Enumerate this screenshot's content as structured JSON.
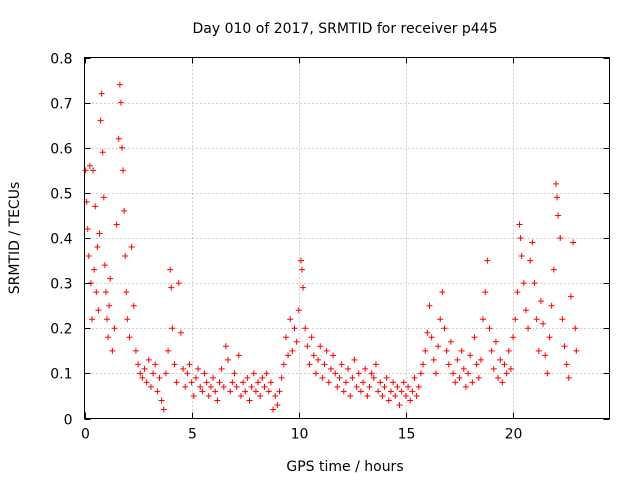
{
  "chart_data": {
    "type": "scatter",
    "title": "Day 010 of 2017, SRMTID for receiver p445",
    "xlabel": "GPS time / hours",
    "ylabel": "SRMTID / TECUs",
    "xlim": [
      0,
      24.5
    ],
    "ylim": [
      0,
      0.8
    ],
    "x_ticks": [
      0,
      5,
      10,
      15,
      20
    ],
    "x_tick_labels": [
      "0",
      "5",
      "10",
      "15",
      "20"
    ],
    "y_ticks": [
      0,
      0.1,
      0.2,
      0.3,
      0.4,
      0.5,
      0.6,
      0.7,
      0.8
    ],
    "y_tick_labels": [
      "0",
      "0.1",
      "0.2",
      "0.3",
      "0.4",
      "0.5",
      "0.6",
      "0.7",
      "0.8"
    ],
    "grid": true,
    "marker": "+",
    "color": "#ff0000",
    "series": [
      {
        "name": "p445",
        "points": [
          [
            0.05,
            0.55
          ],
          [
            0.1,
            0.48
          ],
          [
            0.15,
            0.42
          ],
          [
            0.2,
            0.36
          ],
          [
            0.25,
            0.56
          ],
          [
            0.3,
            0.3
          ],
          [
            0.35,
            0.22
          ],
          [
            0.4,
            0.55
          ],
          [
            0.45,
            0.33
          ],
          [
            0.5,
            0.47
          ],
          [
            0.55,
            0.28
          ],
          [
            0.6,
            0.38
          ],
          [
            0.65,
            0.24
          ],
          [
            0.7,
            0.41
          ],
          [
            0.75,
            0.66
          ],
          [
            0.8,
            0.72
          ],
          [
            0.85,
            0.59
          ],
          [
            0.9,
            0.49
          ],
          [
            0.95,
            0.34
          ],
          [
            1.0,
            0.28
          ],
          [
            1.05,
            0.22
          ],
          [
            1.1,
            0.18
          ],
          [
            1.15,
            0.25
          ],
          [
            1.2,
            0.31
          ],
          [
            1.3,
            0.15
          ],
          [
            1.4,
            0.2
          ],
          [
            1.5,
            0.43
          ],
          [
            1.6,
            0.62
          ],
          [
            1.65,
            0.74
          ],
          [
            1.7,
            0.7
          ],
          [
            1.75,
            0.6
          ],
          [
            1.8,
            0.55
          ],
          [
            1.85,
            0.46
          ],
          [
            1.9,
            0.36
          ],
          [
            1.95,
            0.28
          ],
          [
            2.0,
            0.22
          ],
          [
            2.1,
            0.18
          ],
          [
            2.2,
            0.38
          ],
          [
            2.3,
            0.25
          ],
          [
            2.4,
            0.15
          ],
          [
            2.5,
            0.12
          ],
          [
            2.6,
            0.1
          ],
          [
            2.7,
            0.09
          ],
          [
            2.8,
            0.11
          ],
          [
            2.9,
            0.08
          ],
          [
            3.0,
            0.13
          ],
          [
            3.1,
            0.07
          ],
          [
            3.2,
            0.1
          ],
          [
            3.3,
            0.12
          ],
          [
            3.4,
            0.06
          ],
          [
            3.5,
            0.09
          ],
          [
            3.6,
            0.04
          ],
          [
            3.7,
            0.02
          ],
          [
            3.8,
            0.1
          ],
          [
            3.9,
            0.15
          ],
          [
            4.0,
            0.33
          ],
          [
            4.05,
            0.29
          ],
          [
            4.1,
            0.2
          ],
          [
            4.2,
            0.12
          ],
          [
            4.3,
            0.08
          ],
          [
            4.4,
            0.3
          ],
          [
            4.5,
            0.19
          ],
          [
            4.6,
            0.11
          ],
          [
            4.7,
            0.07
          ],
          [
            4.8,
            0.1
          ],
          [
            4.9,
            0.12
          ],
          [
            5.0,
            0.08
          ],
          [
            5.1,
            0.05
          ],
          [
            5.2,
            0.09
          ],
          [
            5.3,
            0.11
          ],
          [
            5.4,
            0.07
          ],
          [
            5.5,
            0.06
          ],
          [
            5.6,
            0.1
          ],
          [
            5.7,
            0.08
          ],
          [
            5.8,
            0.05
          ],
          [
            5.9,
            0.07
          ],
          [
            6.0,
            0.09
          ],
          [
            6.1,
            0.06
          ],
          [
            6.2,
            0.04
          ],
          [
            6.3,
            0.08
          ],
          [
            6.4,
            0.11
          ],
          [
            6.5,
            0.07
          ],
          [
            6.6,
            0.16
          ],
          [
            6.7,
            0.13
          ],
          [
            6.8,
            0.06
          ],
          [
            6.9,
            0.08
          ],
          [
            7.0,
            0.1
          ],
          [
            7.1,
            0.07
          ],
          [
            7.2,
            0.14
          ],
          [
            7.3,
            0.05
          ],
          [
            7.4,
            0.08
          ],
          [
            7.5,
            0.06
          ],
          [
            7.6,
            0.09
          ],
          [
            7.7,
            0.04
          ],
          [
            7.8,
            0.07
          ],
          [
            7.9,
            0.1
          ],
          [
            8.0,
            0.06
          ],
          [
            8.1,
            0.08
          ],
          [
            8.2,
            0.05
          ],
          [
            8.3,
            0.09
          ],
          [
            8.4,
            0.07
          ],
          [
            8.5,
            0.1
          ],
          [
            8.6,
            0.06
          ],
          [
            8.7,
            0.08
          ],
          [
            8.8,
            0.02
          ],
          [
            8.9,
            0.05
          ],
          [
            9.0,
            0.03
          ],
          [
            9.1,
            0.06
          ],
          [
            9.2,
            0.09
          ],
          [
            9.3,
            0.12
          ],
          [
            9.4,
            0.18
          ],
          [
            9.5,
            0.14
          ],
          [
            9.6,
            0.22
          ],
          [
            9.7,
            0.15
          ],
          [
            9.8,
            0.2
          ],
          [
            9.9,
            0.17
          ],
          [
            10.0,
            0.24
          ],
          [
            10.1,
            0.35
          ],
          [
            10.15,
            0.33
          ],
          [
            10.2,
            0.29
          ],
          [
            10.3,
            0.2
          ],
          [
            10.4,
            0.16
          ],
          [
            10.5,
            0.12
          ],
          [
            10.6,
            0.18
          ],
          [
            10.7,
            0.14
          ],
          [
            10.8,
            0.1
          ],
          [
            10.9,
            0.13
          ],
          [
            11.0,
            0.16
          ],
          [
            11.1,
            0.09
          ],
          [
            11.2,
            0.12
          ],
          [
            11.3,
            0.15
          ],
          [
            11.4,
            0.08
          ],
          [
            11.5,
            0.11
          ],
          [
            11.6,
            0.14
          ],
          [
            11.7,
            0.1
          ],
          [
            11.8,
            0.07
          ],
          [
            11.9,
            0.09
          ],
          [
            12.0,
            0.12
          ],
          [
            12.1,
            0.06
          ],
          [
            12.2,
            0.08
          ],
          [
            12.3,
            0.11
          ],
          [
            12.4,
            0.05
          ],
          [
            12.5,
            0.09
          ],
          [
            12.6,
            0.13
          ],
          [
            12.7,
            0.07
          ],
          [
            12.8,
            0.1
          ],
          [
            12.9,
            0.06
          ],
          [
            13.0,
            0.08
          ],
          [
            13.1,
            0.11
          ],
          [
            13.2,
            0.05
          ],
          [
            13.3,
            0.07
          ],
          [
            13.4,
            0.1
          ],
          [
            13.5,
            0.09
          ],
          [
            13.6,
            0.12
          ],
          [
            13.7,
            0.06
          ],
          [
            13.8,
            0.08
          ],
          [
            13.9,
            0.05
          ],
          [
            14.0,
            0.07
          ],
          [
            14.1,
            0.09
          ],
          [
            14.2,
            0.04
          ],
          [
            14.3,
            0.06
          ],
          [
            14.4,
            0.08
          ],
          [
            14.5,
            0.05
          ],
          [
            14.6,
            0.07
          ],
          [
            14.7,
            0.03
          ],
          [
            14.8,
            0.06
          ],
          [
            14.9,
            0.08
          ],
          [
            15.0,
            0.05
          ],
          [
            15.1,
            0.07
          ],
          [
            15.2,
            0.04
          ],
          [
            15.3,
            0.06
          ],
          [
            15.4,
            0.09
          ],
          [
            15.5,
            0.05
          ],
          [
            15.6,
            0.07
          ],
          [
            15.7,
            0.1
          ],
          [
            15.8,
            0.12
          ],
          [
            15.9,
            0.15
          ],
          [
            16.0,
            0.19
          ],
          [
            16.1,
            0.25
          ],
          [
            16.2,
            0.18
          ],
          [
            16.3,
            0.13
          ],
          [
            16.4,
            0.1
          ],
          [
            16.5,
            0.16
          ],
          [
            16.6,
            0.22
          ],
          [
            16.7,
            0.28
          ],
          [
            16.8,
            0.2
          ],
          [
            16.9,
            0.15
          ],
          [
            17.0,
            0.12
          ],
          [
            17.1,
            0.17
          ],
          [
            17.2,
            0.1
          ],
          [
            17.3,
            0.08
          ],
          [
            17.4,
            0.13
          ],
          [
            17.5,
            0.09
          ],
          [
            17.6,
            0.15
          ],
          [
            17.7,
            0.11
          ],
          [
            17.8,
            0.07
          ],
          [
            17.9,
            0.1
          ],
          [
            18.0,
            0.14
          ],
          [
            18.1,
            0.08
          ],
          [
            18.2,
            0.18
          ],
          [
            18.3,
            0.12
          ],
          [
            18.4,
            0.09
          ],
          [
            18.5,
            0.13
          ],
          [
            18.6,
            0.22
          ],
          [
            18.7,
            0.28
          ],
          [
            18.8,
            0.35
          ],
          [
            18.9,
            0.2
          ],
          [
            19.0,
            0.15
          ],
          [
            19.1,
            0.11
          ],
          [
            19.2,
            0.17
          ],
          [
            19.3,
            0.09
          ],
          [
            19.4,
            0.13
          ],
          [
            19.5,
            0.08
          ],
          [
            19.6,
            0.12
          ],
          [
            19.7,
            0.1
          ],
          [
            19.8,
            0.15
          ],
          [
            19.9,
            0.11
          ],
          [
            20.0,
            0.18
          ],
          [
            20.1,
            0.22
          ],
          [
            20.2,
            0.28
          ],
          [
            20.3,
            0.43
          ],
          [
            20.35,
            0.4
          ],
          [
            20.4,
            0.36
          ],
          [
            20.5,
            0.3
          ],
          [
            20.6,
            0.24
          ],
          [
            20.7,
            0.2
          ],
          [
            20.8,
            0.35
          ],
          [
            20.9,
            0.39
          ],
          [
            21.0,
            0.3
          ],
          [
            21.1,
            0.22
          ],
          [
            21.2,
            0.15
          ],
          [
            21.3,
            0.26
          ],
          [
            21.4,
            0.21
          ],
          [
            21.5,
            0.14
          ],
          [
            21.6,
            0.1
          ],
          [
            21.7,
            0.18
          ],
          [
            21.8,
            0.25
          ],
          [
            21.9,
            0.33
          ],
          [
            22.0,
            0.52
          ],
          [
            22.05,
            0.49
          ],
          [
            22.1,
            0.45
          ],
          [
            22.2,
            0.4
          ],
          [
            22.3,
            0.22
          ],
          [
            22.4,
            0.16
          ],
          [
            22.5,
            0.12
          ],
          [
            22.6,
            0.09
          ],
          [
            22.7,
            0.27
          ],
          [
            22.8,
            0.39
          ],
          [
            22.9,
            0.2
          ],
          [
            22.95,
            0.15
          ]
        ]
      }
    ]
  }
}
